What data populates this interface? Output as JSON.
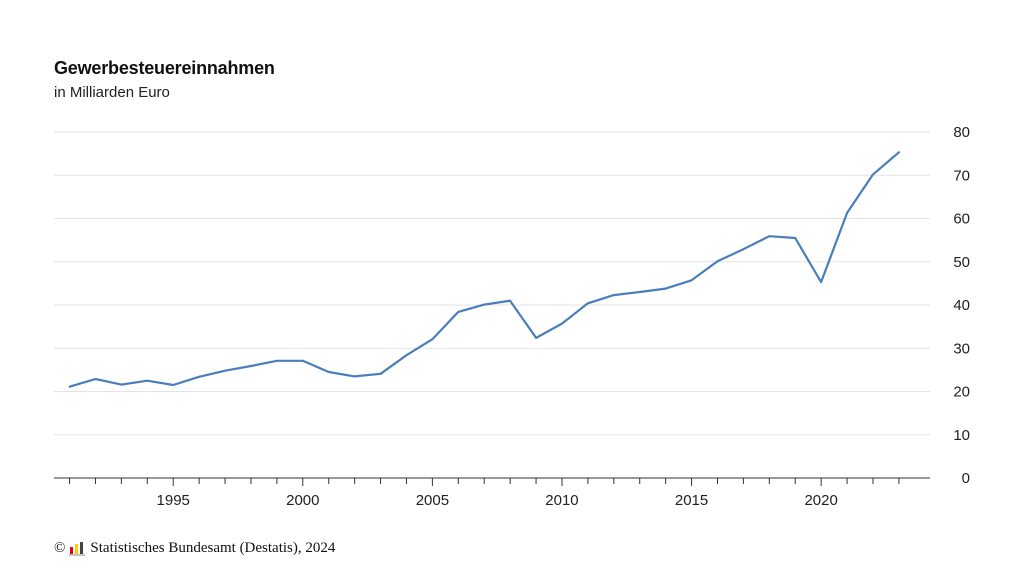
{
  "chart_data": {
    "type": "line",
    "title": "Gewerbesteuereinnahmen",
    "subtitle": "in Milliarden Euro",
    "xlabel": "",
    "ylabel": "",
    "x": [
      1991,
      1992,
      1993,
      1994,
      1995,
      1996,
      1997,
      1998,
      1999,
      2000,
      2001,
      2002,
      2003,
      2004,
      2005,
      2006,
      2007,
      2008,
      2009,
      2010,
      2011,
      2012,
      2013,
      2014,
      2015,
      2016,
      2017,
      2018,
      2019,
      2020,
      2021,
      2022,
      2023
    ],
    "series": [
      {
        "values": [
          21.1,
          22.9,
          21.6,
          22.5,
          21.5,
          23.4,
          24.8,
          25.9,
          27.1,
          27.1,
          24.5,
          23.5,
          24.1,
          28.4,
          32.1,
          38.4,
          40.1,
          41.0,
          32.4,
          35.7,
          40.4,
          42.3,
          43.0,
          43.8,
          45.7,
          50.1,
          52.9,
          55.9,
          55.5,
          45.3,
          61.3,
          70.2,
          75.3
        ],
        "color": "#4a7ebb"
      }
    ],
    "xlim": [
      1990.4,
      2024.2
    ],
    "ylim": [
      0,
      80
    ],
    "yticks": [
      0,
      10,
      20,
      30,
      40,
      50,
      60,
      70,
      80
    ],
    "xticks_labeled": [
      1995,
      2000,
      2005,
      2010,
      2015,
      2020
    ],
    "grid": true,
    "y_axis_side": "right",
    "legend": "none"
  },
  "footer": {
    "copyright_symbol": "©",
    "source": "Statistisches Bundesamt (Destatis), 2024",
    "logo_colors": [
      "#e6001a",
      "#ffcc00",
      "#444444"
    ]
  }
}
